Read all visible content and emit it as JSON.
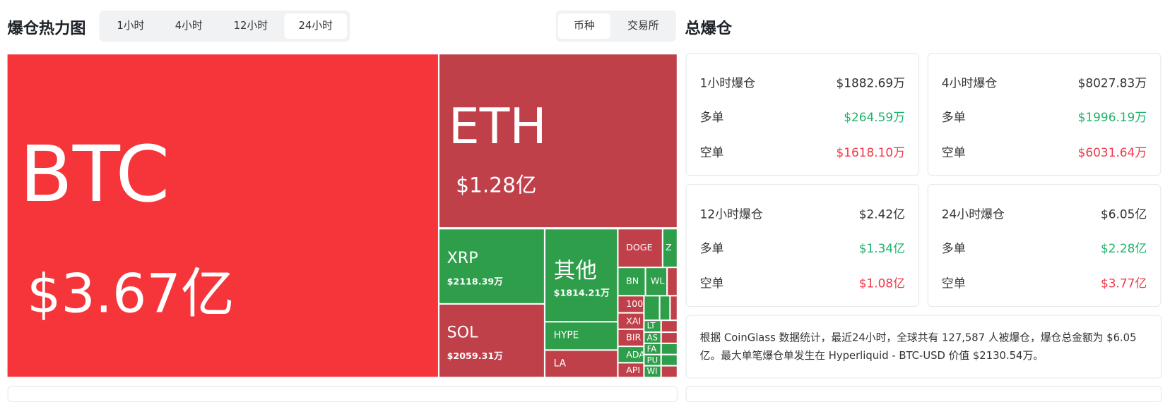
{
  "header": {
    "title": "爆仓热力图",
    "time_tabs": [
      "1小时",
      "4小时",
      "12小时",
      "24小时"
    ],
    "view_tabs": [
      "币种",
      "交易所"
    ]
  },
  "heatmap": {
    "tiles": [
      {
        "label": "BTC",
        "value": "$3.67亿"
      },
      {
        "label": "ETH",
        "value": "$1.28亿"
      },
      {
        "label": "XRP",
        "value": "$2118.39万"
      },
      {
        "label": "SOL",
        "value": "$2059.31万"
      },
      {
        "label": "其他",
        "value": "$1814.21万"
      },
      {
        "label": "HYPE"
      },
      {
        "label": "LA"
      },
      {
        "label": "DOGE"
      },
      {
        "label": "Z"
      },
      {
        "label": "BN"
      },
      {
        "label": "WL"
      },
      {
        "label": "100"
      },
      {
        "label": "XAI"
      },
      {
        "label": "BIR"
      },
      {
        "label": "ADA"
      },
      {
        "label": "API"
      },
      {
        "label": "LT"
      },
      {
        "label": "AS"
      },
      {
        "label": "FA"
      },
      {
        "label": "PU"
      },
      {
        "label": "WI"
      }
    ]
  },
  "summary": {
    "title": "总爆仓",
    "cards": [
      {
        "label": "1小时爆仓",
        "total": "$1882.69万",
        "rows": [
          {
            "label": "多单",
            "value": "$264.59万"
          },
          {
            "label": "空单",
            "value": "$1618.10万"
          }
        ]
      },
      {
        "label": "4小时爆仓",
        "total": "$8027.83万",
        "rows": [
          {
            "label": "多单",
            "value": "$1996.19万"
          },
          {
            "label": "空单",
            "value": "$6031.64万"
          }
        ]
      },
      {
        "label": "12小时爆仓",
        "total": "$2.42亿",
        "rows": [
          {
            "label": "多单",
            "value": "$1.34亿"
          },
          {
            "label": "空单",
            "value": "$1.08亿"
          }
        ]
      },
      {
        "label": "24小时爆仓",
        "total": "$6.05亿",
        "rows": [
          {
            "label": "多单",
            "value": "$2.28亿"
          },
          {
            "label": "空单",
            "value": "$3.77亿"
          }
        ]
      }
    ],
    "note": "根据 CoinGlass 数据统计，最近24小时，全球共有 127,587 人被爆仓，爆仓总金额为 $6.05 亿。最大单笔爆仓单发生在 Hyperliquid - BTC-USD 价值 $2130.54万。"
  }
}
